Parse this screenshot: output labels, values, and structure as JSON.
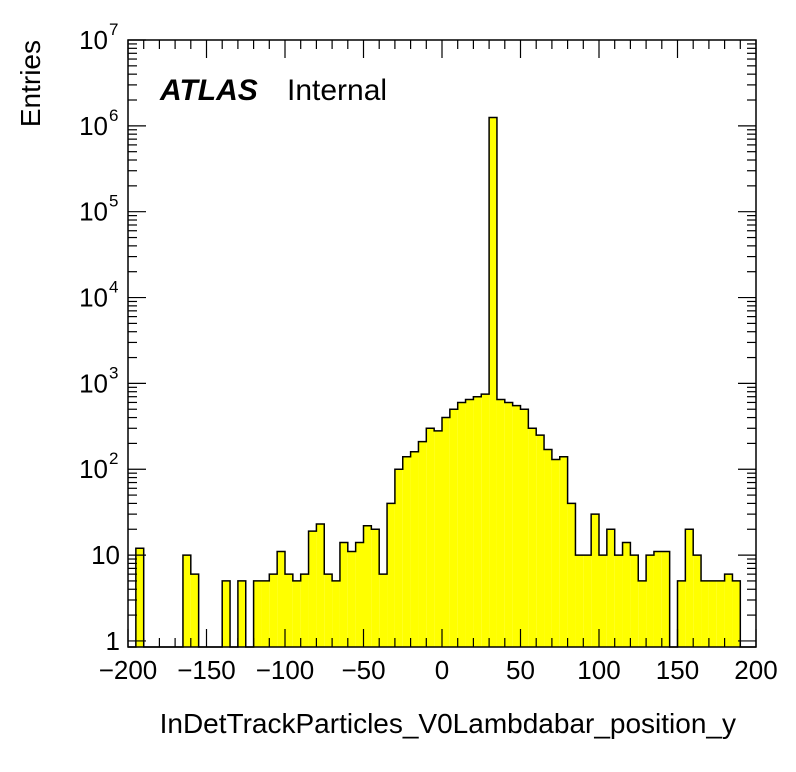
{
  "chart_data": {
    "type": "bar",
    "histogram": true,
    "xlabel": "InDetTrackParticles_V0Lambdabar_position_y",
    "ylabel": "Entries",
    "label_bold": "ATLAS",
    "label_status": "Internal",
    "xlim": [
      -200,
      200
    ],
    "ylim": [
      0.85,
      10000000
    ],
    "yscale": "log",
    "bin_width": 5,
    "x_ticks": [
      -200,
      -150,
      -100,
      -50,
      0,
      50,
      100,
      150,
      200
    ],
    "x_tick_labels": [
      "−200",
      "−150",
      "−100",
      "−50",
      "0",
      "50",
      "100",
      "150",
      "200"
    ],
    "y_ticks": [
      {
        "value": 1,
        "base": "1",
        "exp": ""
      },
      {
        "value": 10,
        "base": "10",
        "exp": ""
      },
      {
        "value": 100,
        "base": "10",
        "exp": "2"
      },
      {
        "value": 1000,
        "base": "10",
        "exp": "3"
      },
      {
        "value": 10000,
        "base": "10",
        "exp": "4"
      },
      {
        "value": 100000,
        "base": "10",
        "exp": "5"
      },
      {
        "value": 1000000,
        "base": "10",
        "exp": "6"
      },
      {
        "value": 10000000,
        "base": "10",
        "exp": "7"
      }
    ],
    "fill_color": "#ffff00",
    "line_color": "#000000",
    "bins": [
      {
        "x": -192.5,
        "y": 12
      },
      {
        "x": -162.5,
        "y": 10
      },
      {
        "x": -157.5,
        "y": 6
      },
      {
        "x": -137.5,
        "y": 5
      },
      {
        "x": -127.5,
        "y": 5
      },
      {
        "x": -117.5,
        "y": 5
      },
      {
        "x": -112.5,
        "y": 5
      },
      {
        "x": -107.5,
        "y": 6
      },
      {
        "x": -102.5,
        "y": 11
      },
      {
        "x": -97.5,
        "y": 6
      },
      {
        "x": -92.5,
        "y": 5
      },
      {
        "x": -87.5,
        "y": 6
      },
      {
        "x": -82.5,
        "y": 19
      },
      {
        "x": -77.5,
        "y": 23
      },
      {
        "x": -72.5,
        "y": 6
      },
      {
        "x": -67.5,
        "y": 5
      },
      {
        "x": -62.5,
        "y": 14
      },
      {
        "x": -57.5,
        "y": 11
      },
      {
        "x": -52.5,
        "y": 14
      },
      {
        "x": -47.5,
        "y": 22
      },
      {
        "x": -42.5,
        "y": 20
      },
      {
        "x": -37.5,
        "y": 6
      },
      {
        "x": -32.5,
        "y": 40
      },
      {
        "x": -27.5,
        "y": 100
      },
      {
        "x": -22.5,
        "y": 140
      },
      {
        "x": -17.5,
        "y": 160
      },
      {
        "x": -12.5,
        "y": 210
      },
      {
        "x": -7.5,
        "y": 300
      },
      {
        "x": -2.5,
        "y": 280
      },
      {
        "x": 2.5,
        "y": 400
      },
      {
        "x": 7.5,
        "y": 500
      },
      {
        "x": 12.5,
        "y": 600
      },
      {
        "x": 17.5,
        "y": 650
      },
      {
        "x": 22.5,
        "y": 700
      },
      {
        "x": 27.5,
        "y": 750
      },
      {
        "x": 32.5,
        "y": 1250000
      },
      {
        "x": 37.5,
        "y": 650
      },
      {
        "x": 42.5,
        "y": 600
      },
      {
        "x": 47.5,
        "y": 550
      },
      {
        "x": 52.5,
        "y": 500
      },
      {
        "x": 57.5,
        "y": 300
      },
      {
        "x": 62.5,
        "y": 250
      },
      {
        "x": 67.5,
        "y": 170
      },
      {
        "x": 72.5,
        "y": 130
      },
      {
        "x": 77.5,
        "y": 140
      },
      {
        "x": 82.5,
        "y": 40
      },
      {
        "x": 87.5,
        "y": 10
      },
      {
        "x": 92.5,
        "y": 10
      },
      {
        "x": 97.5,
        "y": 30
      },
      {
        "x": 102.5,
        "y": 10
      },
      {
        "x": 107.5,
        "y": 20
      },
      {
        "x": 112.5,
        "y": 10
      },
      {
        "x": 117.5,
        "y": 14
      },
      {
        "x": 122.5,
        "y": 10
      },
      {
        "x": 127.5,
        "y": 5
      },
      {
        "x": 132.5,
        "y": 10
      },
      {
        "x": 137.5,
        "y": 11
      },
      {
        "x": 142.5,
        "y": 11
      },
      {
        "x": 152.5,
        "y": 5
      },
      {
        "x": 157.5,
        "y": 20
      },
      {
        "x": 162.5,
        "y": 10
      },
      {
        "x": 167.5,
        "y": 5
      },
      {
        "x": 172.5,
        "y": 5
      },
      {
        "x": 177.5,
        "y": 5
      },
      {
        "x": 182.5,
        "y": 6
      },
      {
        "x": 187.5,
        "y": 5
      }
    ]
  }
}
